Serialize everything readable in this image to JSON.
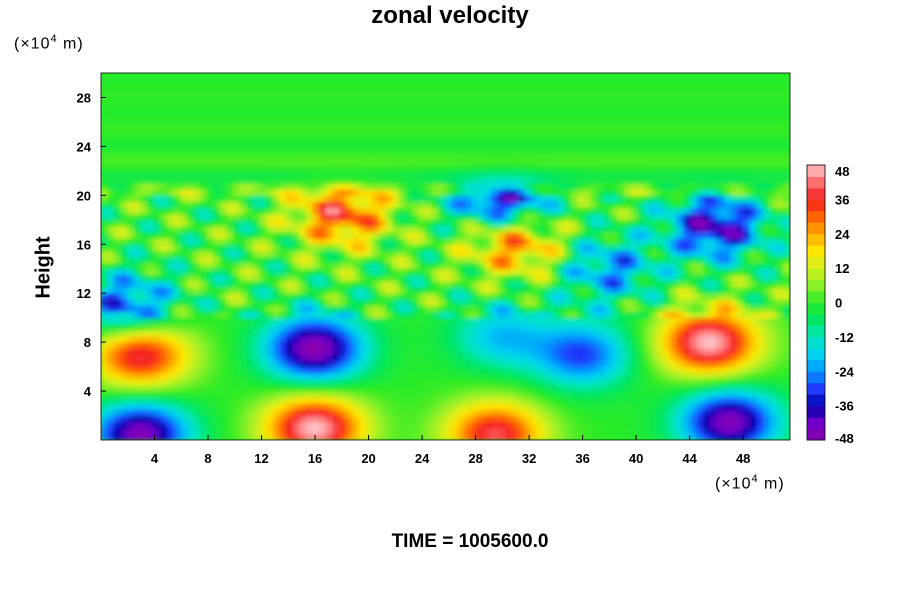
{
  "chart_data": {
    "type": "heatmap",
    "title": "zonal velocity",
    "ylabel": "Height",
    "xlabel": "",
    "x_unit": "(×10⁴ m)",
    "y_unit": "(×10⁴ m)",
    "xlim": [
      0,
      51.5
    ],
    "ylim": [
      0,
      30
    ],
    "x_ticks": [
      "4",
      "8",
      "12",
      "16",
      "20",
      "24",
      "28",
      "32",
      "36",
      "40",
      "44",
      "48"
    ],
    "y_ticks": [
      "4",
      "8",
      "12",
      "16",
      "20",
      "24",
      "28"
    ],
    "colorbar": {
      "ticks": [
        "48",
        "36",
        "24",
        "12",
        "0",
        "-12",
        "-24",
        "-36",
        "-48"
      ],
      "range": [
        -48,
        48
      ],
      "step": 4
    },
    "features": [
      {
        "x": 16.0,
        "y": 7.5,
        "value": -48
      },
      {
        "x": 45.5,
        "y": 8.0,
        "value": 48
      },
      {
        "x": 16.0,
        "y": 1.0,
        "value": 48
      },
      {
        "x": 3.0,
        "y": 7.0,
        "value": 40
      },
      {
        "x": 46.0,
        "y": 17.5,
        "value": -40
      },
      {
        "x": 47.0,
        "y": 1.5,
        "value": -46
      },
      {
        "x": 3.0,
        "y": 0.5,
        "value": -46
      },
      {
        "x": 29.5,
        "y": 0.5,
        "value": 40
      },
      {
        "x": 18.0,
        "y": 18.5,
        "value": 34
      },
      {
        "x": 30.0,
        "y": 20.0,
        "value": -40
      },
      {
        "x": 36.0,
        "y": 7.0,
        "value": -30
      },
      {
        "x": 30.0,
        "y": 8.5,
        "value": -20
      },
      {
        "x": 2.0,
        "y": 11.0,
        "value": -30
      },
      {
        "x": 31.0,
        "y": 16.0,
        "value": 28
      },
      {
        "x": 38.0,
        "y": 14.0,
        "value": -24
      }
    ]
  },
  "footer": {
    "time_label": "TIME = 1005600.0"
  }
}
